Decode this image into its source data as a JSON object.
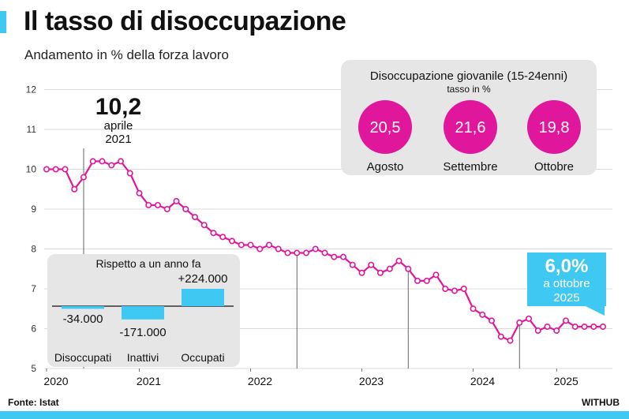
{
  "title": "Il tasso di disoccupazione",
  "subtitle": "Andamento in % della forza lavoro",
  "source": "Fonte: Istat",
  "brand": "WITHUB",
  "colors": {
    "line": "#e0169c",
    "accent": "#3fc8f2",
    "box": "#e6e6e6",
    "youth_circle": "#e0169c"
  },
  "chart_data": {
    "type": "line",
    "title": "Il tasso di disoccupazione",
    "ylabel": "% della forza lavoro",
    "ylim": [
      5,
      12
    ],
    "yticks": [
      "5",
      "6",
      "7",
      "8",
      "9",
      "10",
      "11",
      "12"
    ],
    "xticks": [
      {
        "label": "2020",
        "x": 0
      },
      {
        "label": "2021",
        "x": 10
      },
      {
        "label": "2022",
        "x": 22
      },
      {
        "label": "2023",
        "x": 34
      },
      {
        "label": "2024",
        "x": 46
      },
      {
        "label": "2025",
        "x": 55
      }
    ],
    "series": [
      {
        "name": "Tasso di disoccupazione",
        "values": [
          10.0,
          10.0,
          10.0,
          9.5,
          9.8,
          10.2,
          10.2,
          10.1,
          10.2,
          9.9,
          9.4,
          9.1,
          9.1,
          9.0,
          9.2,
          9.0,
          8.8,
          8.6,
          8.4,
          8.3,
          8.2,
          8.1,
          8.1,
          8.0,
          8.1,
          8.0,
          7.9,
          7.9,
          7.9,
          8.0,
          7.9,
          7.8,
          7.8,
          7.6,
          7.4,
          7.6,
          7.4,
          7.5,
          7.7,
          7.5,
          7.2,
          7.2,
          7.35,
          7.0,
          6.95,
          7.0,
          6.5,
          6.35,
          6.2,
          5.8,
          5.7,
          6.15,
          6.25,
          5.95,
          6.05,
          5.95,
          6.2,
          6.05,
          6.05,
          6.05,
          6.05
        ]
      }
    ],
    "annotations": {
      "peak": {
        "value": "10,2",
        "line1": "aprile",
        "line2": "2021"
      },
      "latest": {
        "value": "6,0%",
        "line1": "a ottobre",
        "line2": "2025"
      }
    },
    "vertical_markers": [
      4,
      27,
      39,
      51
    ]
  },
  "yoy_box": {
    "title": "Rispetto a un anno fa",
    "bars": [
      {
        "name": "Disoccupati",
        "value": -34000,
        "label": "-34.000"
      },
      {
        "name": "Inattivi",
        "value": -171000,
        "label": "-171.000"
      },
      {
        "name": "Occupati",
        "value": 224000,
        "label": "+224.000"
      }
    ]
  },
  "youth_box": {
    "title": "Disoccupazione giovanile (15-24enni)",
    "subtitle": "tasso in %",
    "months": [
      {
        "month": "Agosto",
        "value": "20,5"
      },
      {
        "month": "Settembre",
        "value": "21,6"
      },
      {
        "month": "Ottobre",
        "value": "19,8"
      }
    ]
  }
}
